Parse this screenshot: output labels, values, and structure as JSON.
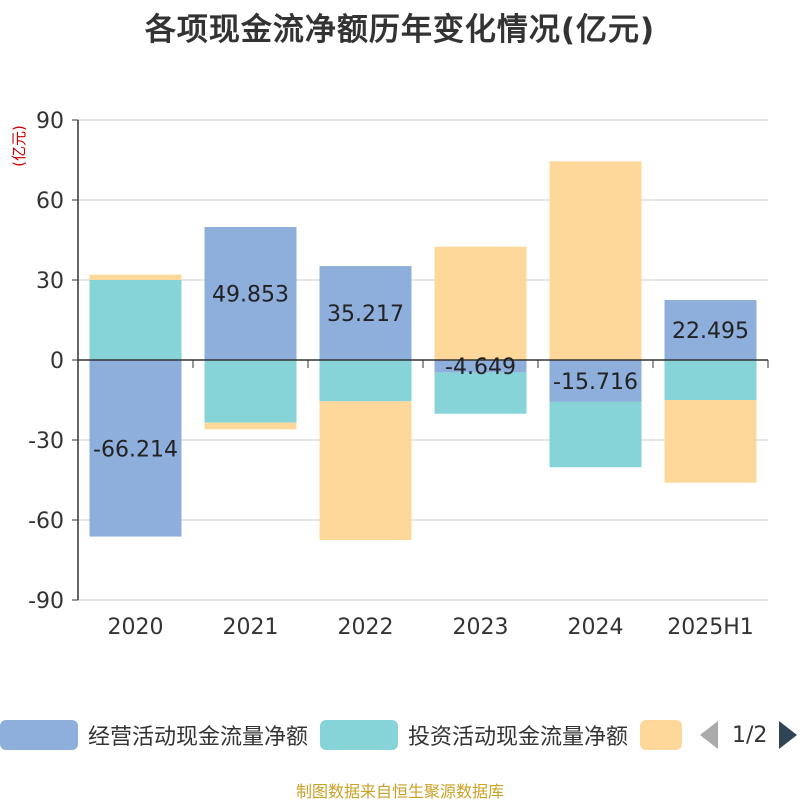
{
  "title": "各项现金流净额历年变化情况(亿元)",
  "source": "制图数据来自恒生聚源数据库",
  "legend_pager": {
    "page": "1/2"
  },
  "colors": {
    "operating": "#8eaedb",
    "investing": "#86d4d8",
    "financing": "#fed89a",
    "grid": "#cccccc",
    "axis": "#333333",
    "unit": "#cc0000"
  },
  "chart_data": {
    "type": "bar",
    "stacked": true,
    "title": "各项现金流净额历年变化情况(亿元)",
    "ylabel": "(亿元)",
    "ylim": [
      -90,
      90
    ],
    "yticks": [
      90,
      60,
      30,
      0,
      -30,
      -60,
      -90
    ],
    "grid": true,
    "legend_position": "bottom",
    "categories": [
      "2020",
      "2021",
      "2022",
      "2023",
      "2024",
      "2025H1"
    ],
    "series": [
      {
        "name": "经营活动现金流量净额",
        "key": "operating",
        "values": [
          -66.214,
          49.853,
          35.217,
          -4.649,
          -15.716,
          22.495
        ],
        "show_labels": true
      },
      {
        "name": "投资活动现金流量净额",
        "key": "investing",
        "values": [
          30,
          -23.5,
          -15.5,
          -15.5,
          -24.5,
          -15
        ]
      },
      {
        "name": "",
        "key": "financing",
        "values": [
          2,
          -2.5,
          -52,
          42.5,
          74.5,
          -31
        ]
      }
    ]
  }
}
